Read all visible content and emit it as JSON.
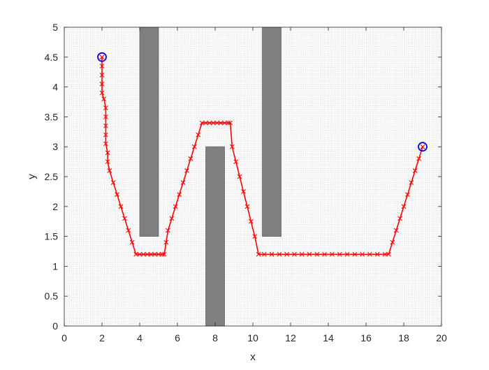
{
  "chart_data": {
    "type": "line",
    "title": "",
    "xlabel": "x",
    "ylabel": "y",
    "xlim": [
      0,
      20
    ],
    "ylim": [
      0,
      5
    ],
    "xticks": [
      0,
      2,
      4,
      6,
      8,
      10,
      12,
      14,
      16,
      18,
      20
    ],
    "yticks": [
      0,
      0.5,
      1,
      1.5,
      2,
      2.5,
      3,
      3.5,
      4,
      4.5,
      5
    ],
    "xtick_labels": [
      "0",
      "2",
      "4",
      "6",
      "8",
      "10",
      "12",
      "14",
      "16",
      "18",
      "20"
    ],
    "ytick_labels": [
      "0",
      "0.5",
      "1",
      "1.5",
      "2",
      "2.5",
      "3",
      "3.5",
      "4",
      "4.5",
      "5"
    ],
    "grid": "fine dotted grid over the whole plot area",
    "legend": "none",
    "obstacles": [
      {
        "x": [
          4,
          5
        ],
        "y": [
          1.5,
          5
        ]
      },
      {
        "x": [
          7.5,
          8.5
        ],
        "y": [
          0,
          3
        ]
      },
      {
        "x": [
          10.5,
          11.5
        ],
        "y": [
          1.5,
          5
        ]
      }
    ],
    "path": {
      "marker": "x",
      "points": [
        [
          2.0,
          4.5
        ],
        [
          2.0,
          4.35
        ],
        [
          2.0,
          4.2
        ],
        [
          2.0,
          4.05
        ],
        [
          2.0,
          3.9
        ],
        [
          2.1,
          3.8
        ],
        [
          2.2,
          3.65
        ],
        [
          2.2,
          3.5
        ],
        [
          2.2,
          3.35
        ],
        [
          2.2,
          3.2
        ],
        [
          2.2,
          3.05
        ],
        [
          2.3,
          2.9
        ],
        [
          2.3,
          2.75
        ],
        [
          2.4,
          2.6
        ],
        [
          2.6,
          2.4
        ],
        [
          2.8,
          2.2
        ],
        [
          3.0,
          2.0
        ],
        [
          3.2,
          1.8
        ],
        [
          3.4,
          1.6
        ],
        [
          3.6,
          1.4
        ],
        [
          3.8,
          1.2
        ],
        [
          4.0,
          1.2
        ],
        [
          4.2,
          1.2
        ],
        [
          4.4,
          1.2
        ],
        [
          4.6,
          1.2
        ],
        [
          4.8,
          1.2
        ],
        [
          5.0,
          1.2
        ],
        [
          5.2,
          1.2
        ],
        [
          5.3,
          1.2
        ],
        [
          5.4,
          1.4
        ],
        [
          5.5,
          1.6
        ],
        [
          5.7,
          1.8
        ],
        [
          5.9,
          2.0
        ],
        [
          6.1,
          2.2
        ],
        [
          6.3,
          2.4
        ],
        [
          6.5,
          2.6
        ],
        [
          6.7,
          2.8
        ],
        [
          6.9,
          3.0
        ],
        [
          7.1,
          3.2
        ],
        [
          7.3,
          3.4
        ],
        [
          7.5,
          3.4
        ],
        [
          7.7,
          3.4
        ],
        [
          7.9,
          3.4
        ],
        [
          8.1,
          3.4
        ],
        [
          8.3,
          3.4
        ],
        [
          8.5,
          3.4
        ],
        [
          8.7,
          3.4
        ],
        [
          8.8,
          3.4
        ],
        [
          8.9,
          3.0
        ],
        [
          9.1,
          2.75
        ],
        [
          9.3,
          2.5
        ],
        [
          9.5,
          2.25
        ],
        [
          9.7,
          2.0
        ],
        [
          9.9,
          1.75
        ],
        [
          10.1,
          1.5
        ],
        [
          10.3,
          1.2
        ],
        [
          10.6,
          1.2
        ],
        [
          11.0,
          1.2
        ],
        [
          11.4,
          1.2
        ],
        [
          11.8,
          1.2
        ],
        [
          12.2,
          1.2
        ],
        [
          12.6,
          1.2
        ],
        [
          13.0,
          1.2
        ],
        [
          13.4,
          1.2
        ],
        [
          13.8,
          1.2
        ],
        [
          14.2,
          1.2
        ],
        [
          14.6,
          1.2
        ],
        [
          15.0,
          1.2
        ],
        [
          15.4,
          1.2
        ],
        [
          15.8,
          1.2
        ],
        [
          16.2,
          1.2
        ],
        [
          16.6,
          1.2
        ],
        [
          17.0,
          1.2
        ],
        [
          17.2,
          1.2
        ],
        [
          17.4,
          1.4
        ],
        [
          17.6,
          1.6
        ],
        [
          17.8,
          1.8
        ],
        [
          18.0,
          2.0
        ],
        [
          18.2,
          2.2
        ],
        [
          18.4,
          2.4
        ],
        [
          18.6,
          2.6
        ],
        [
          18.8,
          2.8
        ],
        [
          19.0,
          3.0
        ]
      ]
    },
    "start": [
      2,
      4.5
    ],
    "goal": [
      19,
      3
    ],
    "colors": {
      "path": "#ff0000",
      "endpoints": "#0000ff",
      "obstacle": "#7f7f7f",
      "grid": "#b3b3b3",
      "axes": "#262626"
    }
  }
}
